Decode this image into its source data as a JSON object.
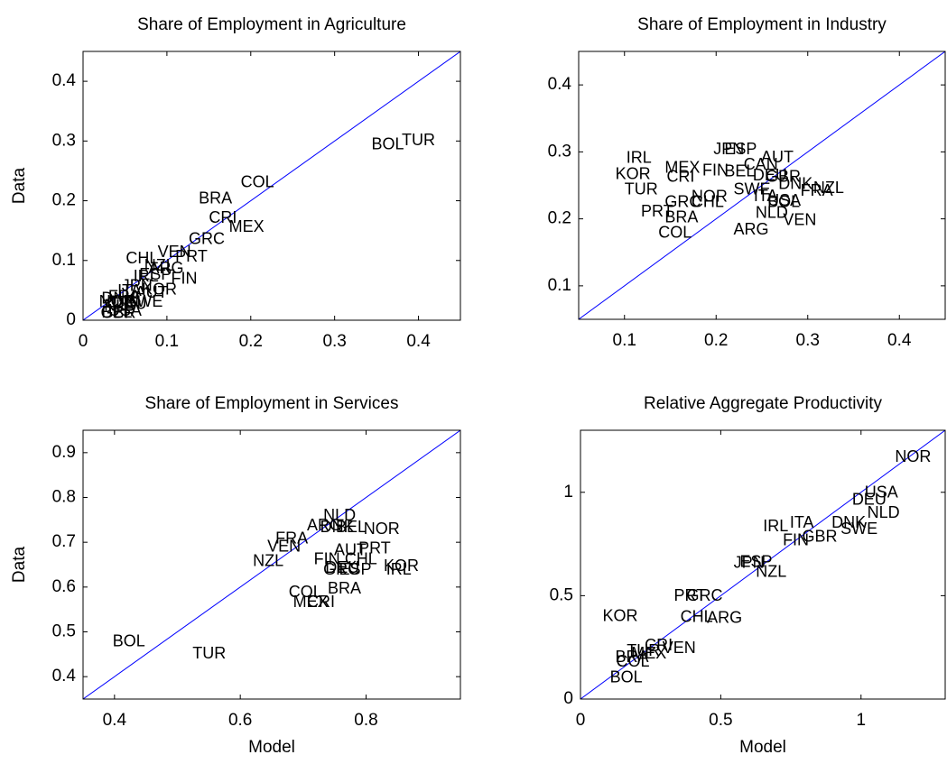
{
  "chart_data": [
    {
      "type": "scatter",
      "title": "Share of Employment in Agriculture",
      "y_label": "Data",
      "line_color": "#0000ff",
      "xlim": [
        0,
        0.45
      ],
      "ylim": [
        0,
        0.45
      ],
      "xticks": [
        0,
        0.1,
        0.2,
        0.3,
        0.4
      ],
      "yticks": [
        0,
        0.1,
        0.2,
        0.3,
        0.4
      ],
      "labels": [
        "TUR",
        "BOL",
        "COL",
        "BRA",
        "CRI",
        "MEX",
        "GRC",
        "CHL",
        "VEN",
        "PRT",
        "NZL",
        "ARG",
        "ESP",
        "FIN",
        "IRL",
        "JPN",
        "ITA",
        "FRA",
        "DNK",
        "NOR",
        "SWE",
        "AUT",
        "KOR",
        "DEU",
        "USA",
        "NLD",
        "CAN",
        "GBR",
        "BEL"
      ],
      "x": [
        0.38,
        0.344,
        0.188,
        0.138,
        0.15,
        0.174,
        0.126,
        0.051,
        0.089,
        0.11,
        0.073,
        0.078,
        0.067,
        0.105,
        0.06,
        0.046,
        0.041,
        0.03,
        0.022,
        0.019,
        0.051,
        0.062,
        0.07,
        0.035,
        0.03,
        0.025,
        0.028,
        0.021,
        0.022
      ],
      "y": [
        0.3,
        0.293,
        0.23,
        0.203,
        0.17,
        0.155,
        0.135,
        0.102,
        0.113,
        0.105,
        0.09,
        0.086,
        0.075,
        0.068,
        0.072,
        0.056,
        0.048,
        0.038,
        0.035,
        0.03,
        0.03,
        0.045,
        0.05,
        0.026,
        0.015,
        0.023,
        0.029,
        0.011,
        0.012
      ]
    },
    {
      "type": "scatter",
      "title": "Share of Employment in Industry",
      "line_color": "#0000ff",
      "xlim": [
        0.05,
        0.45
      ],
      "ylim": [
        0.05,
        0.45
      ],
      "xticks": [
        0.1,
        0.2,
        0.3,
        0.4
      ],
      "yticks": [
        0.1,
        0.2,
        0.3,
        0.4
      ],
      "labels": [
        "IRL",
        "KOR",
        "TUR",
        "MEX",
        "CRI",
        "FIN",
        "JPN",
        "ESP",
        "AUT",
        "CAN",
        "BEL",
        "DEU",
        "GBR",
        "DNK",
        "NZL",
        "FRA",
        "SWE",
        "NOR",
        "GRC",
        "CHL",
        "ITA",
        "USA",
        "BOL",
        "NLD",
        "VEN",
        "ARG",
        "PRT",
        "BRA",
        "COL"
      ],
      "x": [
        0.102,
        0.09,
        0.1,
        0.144,
        0.146,
        0.185,
        0.197,
        0.209,
        0.249,
        0.23,
        0.209,
        0.24,
        0.254,
        0.268,
        0.306,
        0.292,
        0.219,
        0.173,
        0.144,
        0.173,
        0.241,
        0.256,
        0.256,
        0.243,
        0.273,
        0.219,
        0.118,
        0.144,
        0.137
      ],
      "y": [
        0.29,
        0.266,
        0.243,
        0.275,
        0.262,
        0.271,
        0.303,
        0.303,
        0.291,
        0.28,
        0.27,
        0.264,
        0.262,
        0.251,
        0.245,
        0.241,
        0.243,
        0.232,
        0.224,
        0.224,
        0.233,
        0.226,
        0.224,
        0.208,
        0.197,
        0.183,
        0.21,
        0.201,
        0.178
      ]
    },
    {
      "type": "scatter",
      "title": "Share of Employment in Services",
      "x_label": "Model",
      "y_label": "Data",
      "line_color": "#0000ff",
      "xlim": [
        0.35,
        0.95
      ],
      "ylim": [
        0.35,
        0.95
      ],
      "xticks": [
        0.4,
        0.6,
        0.8
      ],
      "yticks": [
        0.4,
        0.5,
        0.6,
        0.7,
        0.8,
        0.9
      ],
      "labels": [
        "BOL",
        "TUR",
        "NZL",
        "VEN",
        "FRA",
        "NLD",
        "ARG",
        "DNK",
        "BEL",
        "NOR",
        "AUT",
        "PRT",
        "FIN",
        "CHL",
        "DEU",
        "ESP",
        "IRL",
        "KOR",
        "GRC",
        "BRA",
        "COL",
        "MEX",
        "CRI"
      ],
      "x": [
        0.397,
        0.524,
        0.62,
        0.643,
        0.656,
        0.732,
        0.706,
        0.727,
        0.752,
        0.796,
        0.749,
        0.788,
        0.717,
        0.766,
        0.735,
        0.757,
        0.832,
        0.828,
        0.732,
        0.739,
        0.677,
        0.684,
        0.706
      ],
      "y": [
        0.477,
        0.45,
        0.657,
        0.689,
        0.707,
        0.758,
        0.736,
        0.732,
        0.732,
        0.728,
        0.681,
        0.685,
        0.661,
        0.661,
        0.641,
        0.637,
        0.637,
        0.645,
        0.637,
        0.595,
        0.587,
        0.565,
        0.565
      ]
    },
    {
      "type": "scatter",
      "title": "Relative Aggregate Productivity",
      "x_label": "Model",
      "line_color": "#0000ff",
      "xlim": [
        0,
        1.3
      ],
      "ylim": [
        0,
        1.3
      ],
      "xticks": [
        0,
        0.5,
        1
      ],
      "yticks": [
        0,
        0.5,
        1
      ],
      "labels": [
        "NOR",
        "USA",
        "DEU",
        "NLD",
        "DNK",
        "SWE",
        "IRL",
        "ITA",
        "FIN",
        "GBR",
        "JPN",
        "ESP",
        "NZL",
        "PRT",
        "GRC",
        "KOR",
        "CHL",
        "ARG",
        "CRI",
        "VEN",
        "TUR",
        "MEX",
        "BRA",
        "COL",
        "BOL"
      ],
      "x": [
        1.121,
        1.013,
        0.968,
        1.022,
        0.895,
        0.927,
        0.651,
        0.746,
        0.721,
        0.79,
        0.546,
        0.568,
        0.625,
        0.333,
        0.378,
        0.079,
        0.356,
        0.451,
        0.229,
        0.292,
        0.165,
        0.181,
        0.124,
        0.127,
        0.105
      ],
      "y": [
        1.168,
        0.996,
        0.96,
        0.898,
        0.85,
        0.819,
        0.832,
        0.85,
        0.765,
        0.783,
        0.655,
        0.659,
        0.611,
        0.496,
        0.496,
        0.398,
        0.394,
        0.389,
        0.257,
        0.243,
        0.23,
        0.217,
        0.199,
        0.177,
        0.102
      ]
    }
  ]
}
